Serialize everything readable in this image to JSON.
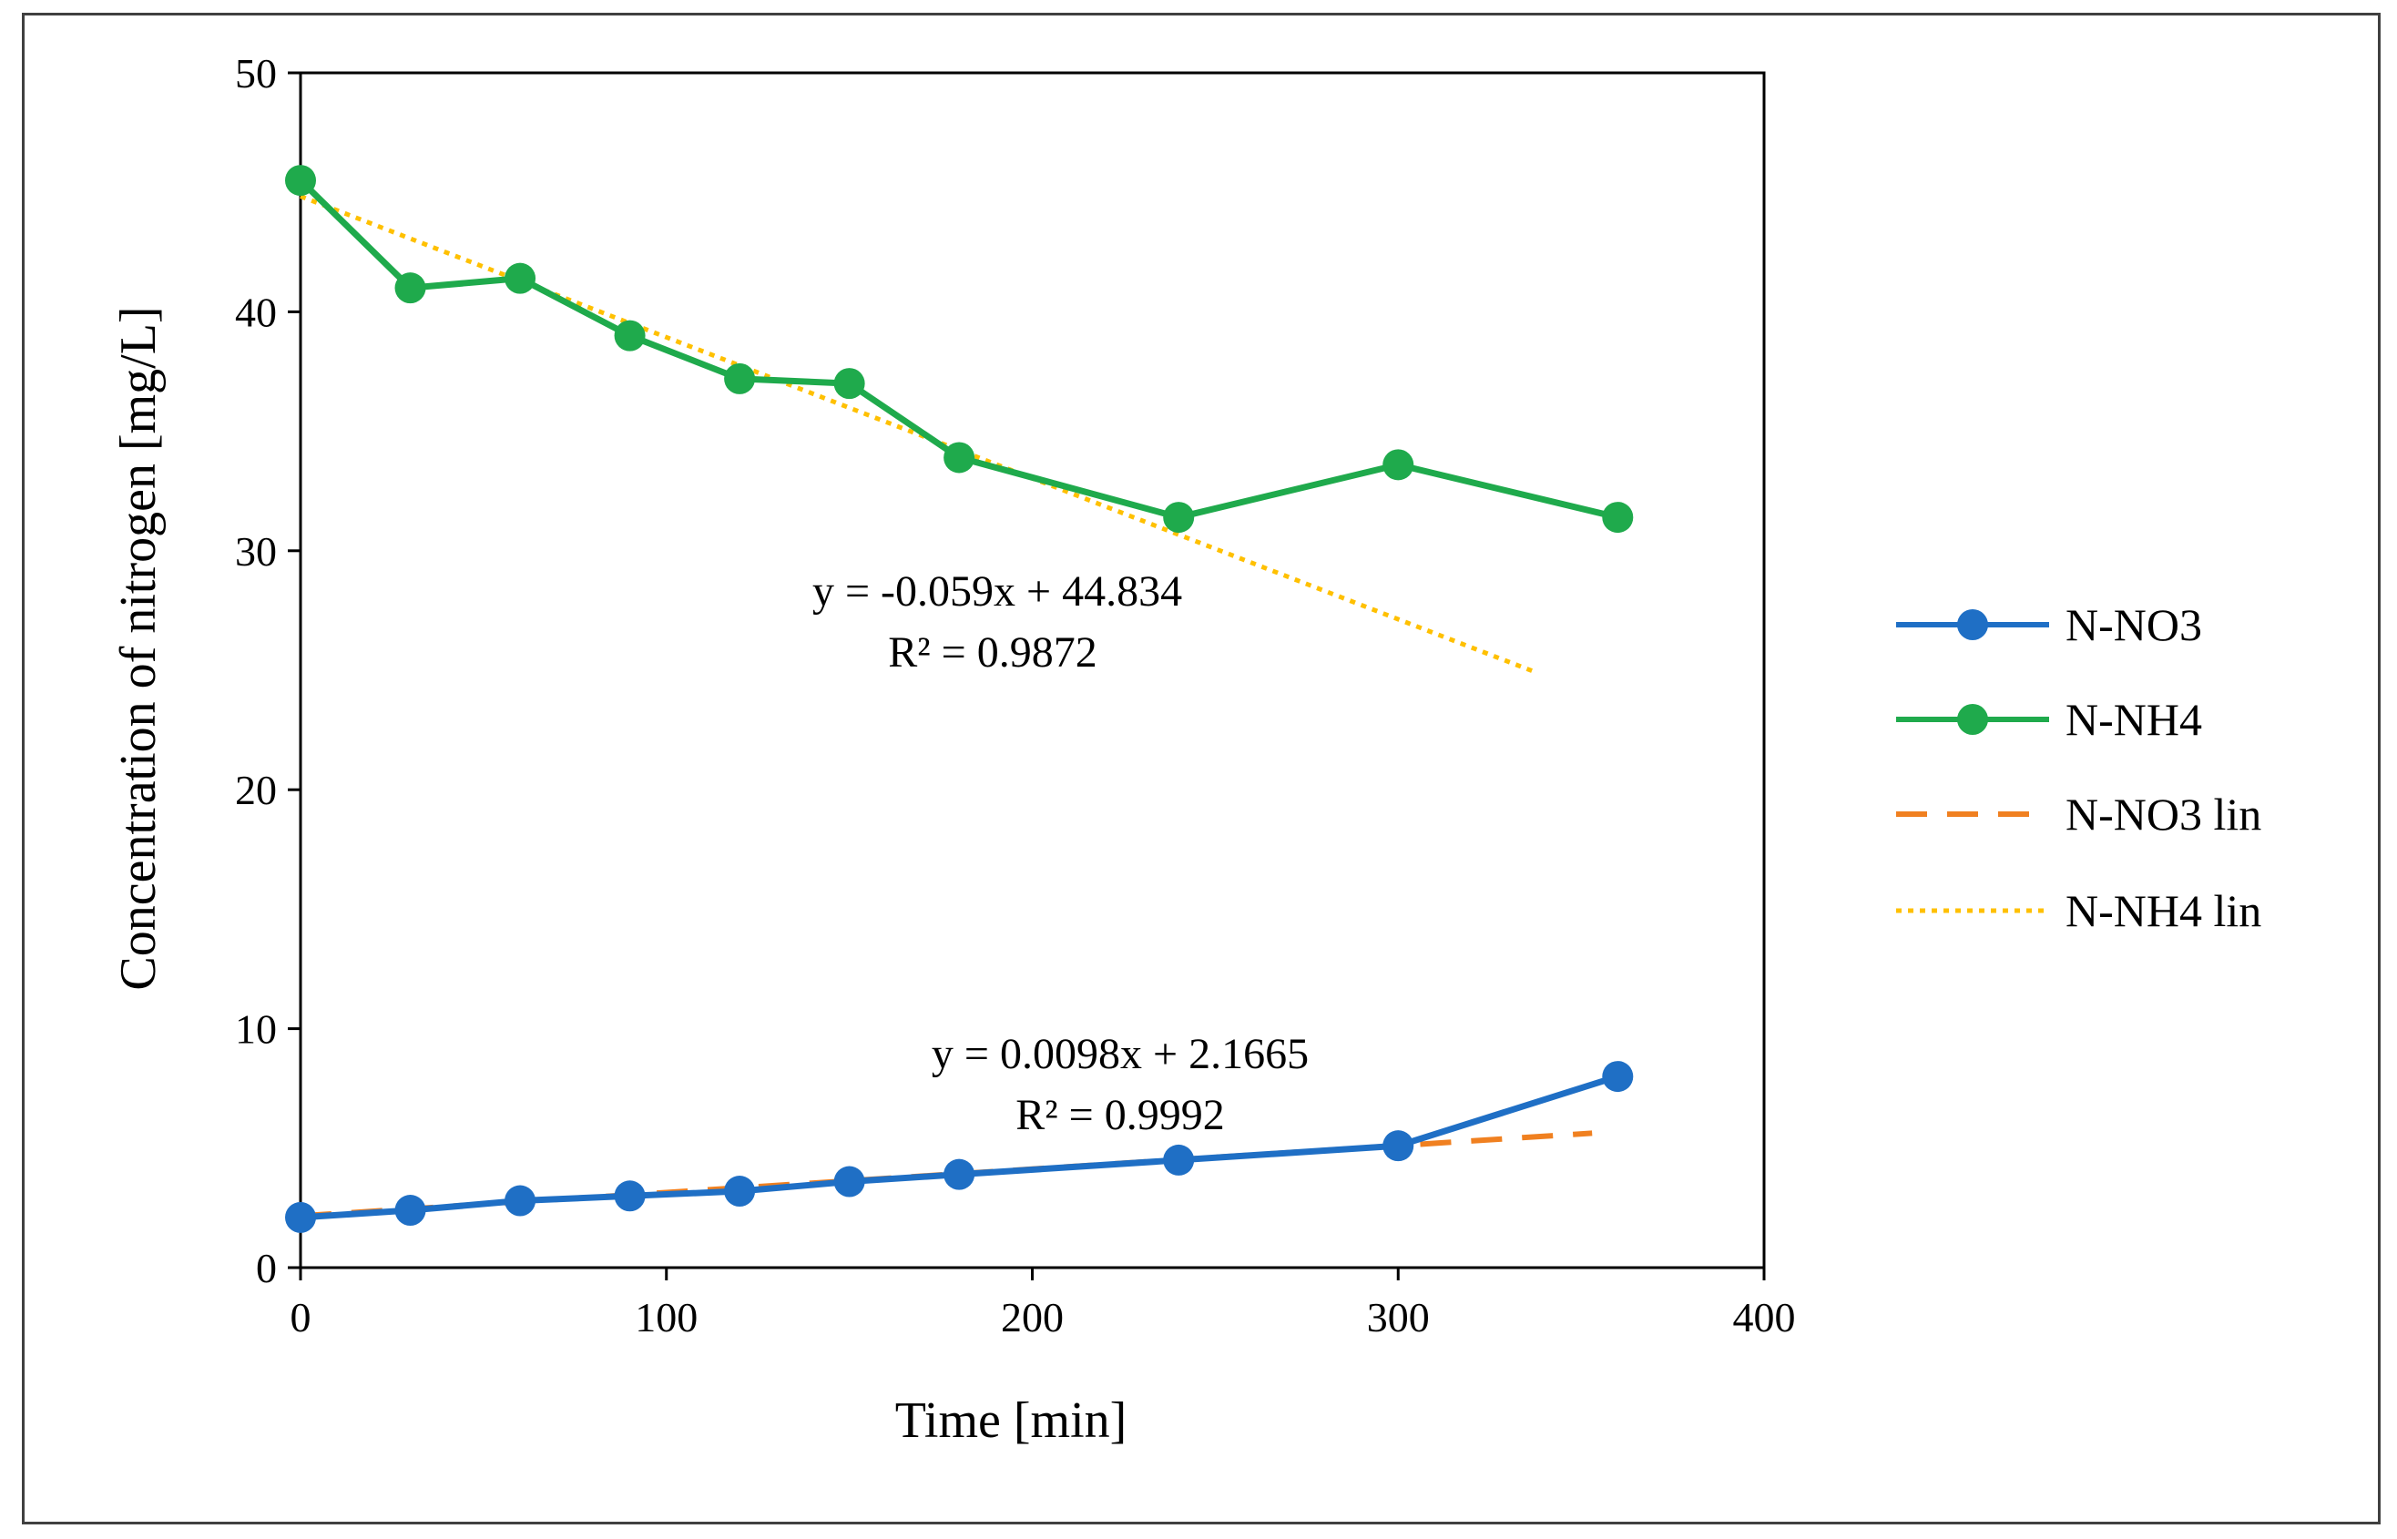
{
  "chart_data": {
    "type": "line",
    "title": "",
    "xlabel": "Time [min]",
    "ylabel": "Concentration of nitrogen [mg/L]",
    "xlim": [
      0,
      400
    ],
    "ylim": [
      0,
      50
    ],
    "xticks": [
      0,
      100,
      200,
      300,
      400
    ],
    "yticks": [
      0,
      10,
      20,
      30,
      40,
      50
    ],
    "xtick_labels": [
      "0",
      "100",
      "200",
      "300",
      "400"
    ],
    "ytick_labels": [
      "0",
      "10",
      "20",
      "30",
      "40",
      "50"
    ],
    "grid": false,
    "legend_position": "right",
    "series": [
      {
        "name": "N-NO3",
        "style": "line-markers",
        "color": "#1f6fc5",
        "x": [
          0,
          30,
          60,
          90,
          120,
          150,
          180,
          240,
          300,
          360
        ],
        "y": [
          2.1,
          2.4,
          2.8,
          3.0,
          3.2,
          3.6,
          3.9,
          4.5,
          5.1,
          8.0
        ]
      },
      {
        "name": "N-NH4",
        "style": "line-markers",
        "color": "#1faa4c",
        "x": [
          0,
          30,
          60,
          90,
          120,
          150,
          180,
          240,
          300,
          360
        ],
        "y": [
          45.5,
          41.0,
          41.4,
          39.0,
          37.2,
          37.0,
          33.9,
          31.4,
          33.6,
          31.4
        ]
      },
      {
        "name": "N-NO3 lin",
        "style": "dashed",
        "color": "#f08020",
        "slope": 0.0098,
        "intercept": 2.1665,
        "x_range": [
          0,
          353
        ]
      },
      {
        "name": "N-NH4 lin",
        "style": "dotted",
        "color": "#ffc000",
        "slope": -0.059,
        "intercept": 44.834,
        "x_range": [
          0,
          337
        ]
      }
    ],
    "annotations": [
      {
        "id": "nh4-trend",
        "line1": "y = -0.059x + 44.834",
        "line2": "R² = 0.9872"
      },
      {
        "id": "no3-trend",
        "line1": "y = 0.0098x + 2.1665",
        "line2": "R² = 0.9992"
      }
    ]
  }
}
